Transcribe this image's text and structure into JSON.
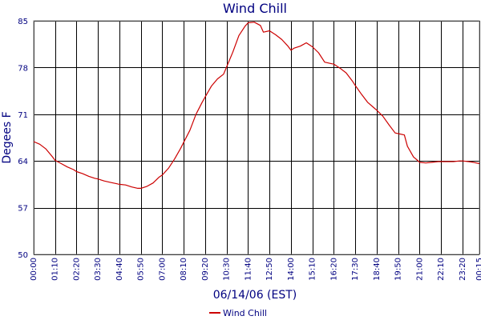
{
  "chart_data": {
    "type": "line",
    "title": "Wind Chill",
    "xlabel": "06/14/06 (EST)",
    "ylabel": "Degees F",
    "ylim": [
      50,
      85
    ],
    "y_ticks": [
      "85",
      "78",
      "71",
      "64",
      "57",
      "50"
    ],
    "x_ticks": [
      "00:00",
      "01:10",
      "02:20",
      "03:30",
      "04:40",
      "05:50",
      "07:00",
      "08:10",
      "09:20",
      "10:30",
      "11:40",
      "12:50",
      "14:00",
      "15:10",
      "16:20",
      "17:30",
      "18:40",
      "19:50",
      "21:00",
      "22:10",
      "23:20",
      "00:15"
    ],
    "grid": true,
    "legend_position": "bottom-center",
    "colors": {
      "series": "#cc0000",
      "text": "#000080",
      "grid": "#000000",
      "frame": "#808080"
    },
    "series": [
      {
        "name": "Wind Chill",
        "points": [
          [
            "00:00",
            66.9
          ],
          [
            "00:20",
            66.5
          ],
          [
            "00:40",
            65.8
          ],
          [
            "01:00",
            64.7
          ],
          [
            "01:10",
            64.1
          ],
          [
            "01:30",
            63.6
          ],
          [
            "01:50",
            63.1
          ],
          [
            "02:10",
            62.7
          ],
          [
            "02:20",
            62.4
          ],
          [
            "02:40",
            62.1
          ],
          [
            "03:00",
            61.7
          ],
          [
            "03:20",
            61.4
          ],
          [
            "03:30",
            61.3
          ],
          [
            "03:50",
            61.0
          ],
          [
            "04:10",
            60.8
          ],
          [
            "04:30",
            60.6
          ],
          [
            "04:40",
            60.5
          ],
          [
            "05:00",
            60.4
          ],
          [
            "05:20",
            60.1
          ],
          [
            "05:40",
            59.9
          ],
          [
            "05:50",
            59.9
          ],
          [
            "06:10",
            60.2
          ],
          [
            "06:30",
            60.7
          ],
          [
            "06:50",
            61.6
          ],
          [
            "07:00",
            61.9
          ],
          [
            "07:20",
            62.9
          ],
          [
            "07:40",
            64.3
          ],
          [
            "08:00",
            65.9
          ],
          [
            "08:10",
            66.8
          ],
          [
            "08:30",
            68.6
          ],
          [
            "08:50",
            71.0
          ],
          [
            "09:10",
            72.8
          ],
          [
            "09:20",
            73.6
          ],
          [
            "09:40",
            75.2
          ],
          [
            "10:00",
            76.3
          ],
          [
            "10:20",
            77.0
          ],
          [
            "10:30",
            78.1
          ],
          [
            "10:50",
            80.3
          ],
          [
            "11:10",
            82.8
          ],
          [
            "11:30",
            84.2
          ],
          [
            "11:40",
            84.7
          ],
          [
            "12:00",
            84.8
          ],
          [
            "12:20",
            84.3
          ],
          [
            "12:30",
            83.3
          ],
          [
            "12:50",
            83.5
          ],
          [
            "13:10",
            82.9
          ],
          [
            "13:30",
            82.2
          ],
          [
            "13:50",
            81.2
          ],
          [
            "14:00",
            80.6
          ],
          [
            "14:10",
            80.9
          ],
          [
            "14:30",
            81.2
          ],
          [
            "14:50",
            81.7
          ],
          [
            "15:10",
            81.1
          ],
          [
            "15:30",
            80.2
          ],
          [
            "15:50",
            78.8
          ],
          [
            "16:10",
            78.6
          ],
          [
            "16:20",
            78.5
          ],
          [
            "16:40",
            77.9
          ],
          [
            "17:00",
            77.2
          ],
          [
            "17:20",
            76.0
          ],
          [
            "17:30",
            75.3
          ],
          [
            "17:50",
            74.0
          ],
          [
            "18:10",
            72.8
          ],
          [
            "18:30",
            72.0
          ],
          [
            "18:40",
            71.6
          ],
          [
            "19:00",
            70.7
          ],
          [
            "19:20",
            69.4
          ],
          [
            "19:40",
            68.2
          ],
          [
            "19:50",
            68.1
          ],
          [
            "20:10",
            67.9
          ],
          [
            "20:20",
            66.2
          ],
          [
            "20:40",
            64.6
          ],
          [
            "20:50",
            64.2
          ],
          [
            "21:00",
            63.8
          ],
          [
            "21:20",
            63.7
          ],
          [
            "21:40",
            63.8
          ],
          [
            "22:00",
            63.9
          ],
          [
            "22:10",
            63.9
          ],
          [
            "22:30",
            63.9
          ],
          [
            "22:50",
            63.9
          ],
          [
            "23:10",
            64.0
          ],
          [
            "23:20",
            64.0
          ],
          [
            "23:40",
            63.9
          ],
          [
            "23:55",
            63.8
          ],
          [
            "24:15",
            63.6
          ]
        ]
      }
    ]
  }
}
